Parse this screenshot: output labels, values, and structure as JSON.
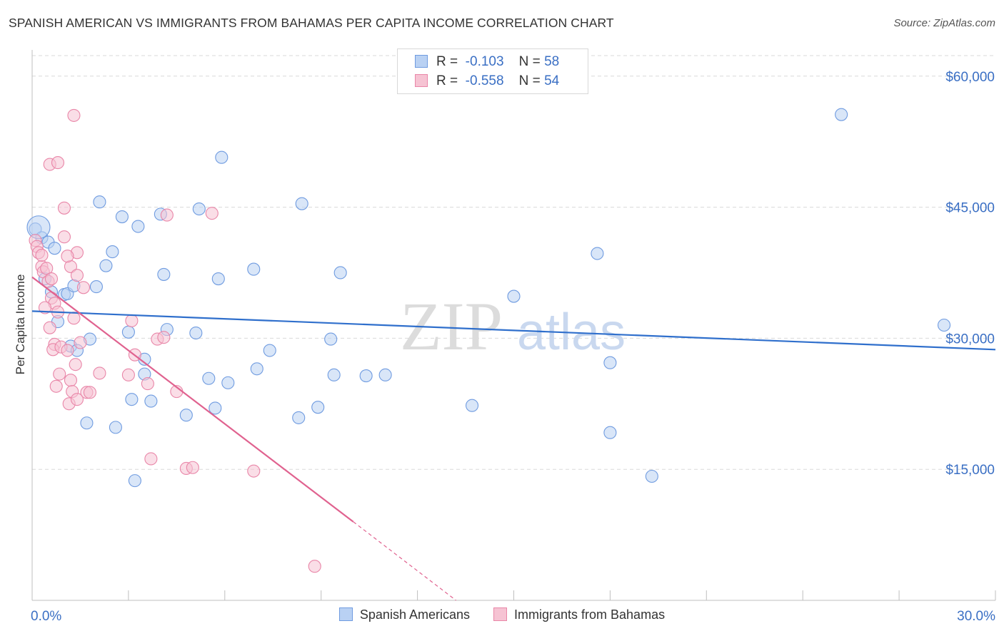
{
  "header": {
    "title": "SPANISH AMERICAN VS IMMIGRANTS FROM BAHAMAS PER CAPITA INCOME CORRELATION CHART",
    "source": "Source: ZipAtlas.com"
  },
  "watermark": {
    "zip": "ZIP",
    "atlas": "atlas"
  },
  "legend": {
    "r_label": "R =",
    "n_label": "N =",
    "rows": [
      {
        "r": "-0.103",
        "n": "58"
      },
      {
        "r": "-0.558",
        "n": "54"
      }
    ]
  },
  "colors": {
    "blue_fill": "#b9d1f3",
    "blue_stroke": "#6f9be0",
    "blue_line": "#2f6fcc",
    "pink_fill": "#f6c3d3",
    "pink_stroke": "#e986a8",
    "pink_line": "#e0628f",
    "axis_text": "#3a6fc4",
    "grid": "#d9d9d9"
  },
  "chart_data": {
    "type": "scatter",
    "title": "SPANISH AMERICAN VS IMMIGRANTS FROM BAHAMAS PER CAPITA INCOME CORRELATION CHART",
    "xlabel": "",
    "ylabel": "Per Capita Income",
    "xlim": [
      0,
      30
    ],
    "ylim": [
      0,
      63000
    ],
    "x_tick_labels": [
      "0.0%",
      "30.0%"
    ],
    "y_ticks": [
      15000,
      30000,
      45000,
      60000
    ],
    "y_tick_labels": [
      "$15,000",
      "$30,000",
      "$45,000",
      "$60,000"
    ],
    "grid": true,
    "legend_position": "top-center",
    "series": [
      {
        "name": "Spanish Americans",
        "color": "blue",
        "r": -0.103,
        "n": 58,
        "trend": {
          "x0": 0,
          "y0": 33100,
          "x1": 30,
          "y1": 28700
        },
        "points": [
          [
            0.1,
            42500
          ],
          [
            0.3,
            41500
          ],
          [
            0.5,
            41000
          ],
          [
            0.4,
            36800
          ],
          [
            0.6,
            35300
          ],
          [
            0.7,
            40300
          ],
          [
            1.0,
            35000
          ],
          [
            1.1,
            35100
          ],
          [
            1.3,
            36000
          ],
          [
            2.0,
            35900
          ],
          [
            0.8,
            31900
          ],
          [
            1.2,
            29100
          ],
          [
            1.4,
            28600
          ],
          [
            1.8,
            29900
          ],
          [
            2.1,
            45600
          ],
          [
            2.5,
            39900
          ],
          [
            2.3,
            38300
          ],
          [
            2.8,
            43900
          ],
          [
            3.3,
            42800
          ],
          [
            4.0,
            44200
          ],
          [
            4.1,
            37300
          ],
          [
            3.0,
            30700
          ],
          [
            3.1,
            23000
          ],
          [
            3.2,
            13700
          ],
          [
            3.7,
            22800
          ],
          [
            3.5,
            27600
          ],
          [
            3.5,
            25900
          ],
          [
            1.7,
            20300
          ],
          [
            2.6,
            19800
          ],
          [
            4.2,
            31000
          ],
          [
            5.1,
            30600
          ],
          [
            5.2,
            44800
          ],
          [
            5.5,
            25400
          ],
          [
            5.7,
            22000
          ],
          [
            4.8,
            21200
          ],
          [
            5.8,
            36800
          ],
          [
            5.9,
            50700
          ],
          [
            6.1,
            24900
          ],
          [
            6.9,
            37900
          ],
          [
            7.0,
            26500
          ],
          [
            7.4,
            28600
          ],
          [
            8.4,
            45400
          ],
          [
            8.3,
            20900
          ],
          [
            8.9,
            22100
          ],
          [
            9.3,
            29900
          ],
          [
            9.4,
            25800
          ],
          [
            9.6,
            37500
          ],
          [
            10.4,
            25700
          ],
          [
            11.0,
            25800
          ],
          [
            13.7,
            22300
          ],
          [
            15.0,
            34800
          ],
          [
            17.6,
            39700
          ],
          [
            18.0,
            27200
          ],
          [
            18.0,
            19200
          ],
          [
            19.3,
            14200
          ],
          [
            25.2,
            55600
          ],
          [
            28.4,
            31500
          ],
          [
            0.2,
            42700
          ]
        ]
      },
      {
        "name": "Immigrants from Bahamas",
        "color": "pink",
        "r": -0.558,
        "n": 54,
        "trend": {
          "x0": 0,
          "y0": 37000,
          "x1": 10.0,
          "y1": 9000
        },
        "trend_dashed": {
          "x0": 10.0,
          "y0": 9000,
          "x1": 13.2,
          "y1": 0
        },
        "points": [
          [
            0.1,
            41200
          ],
          [
            0.15,
            40500
          ],
          [
            0.2,
            39800
          ],
          [
            0.3,
            38200
          ],
          [
            0.35,
            37600
          ],
          [
            0.45,
            38000
          ],
          [
            0.5,
            36500
          ],
          [
            0.6,
            34600
          ],
          [
            0.7,
            34000
          ],
          [
            0.8,
            33000
          ],
          [
            0.4,
            33500
          ],
          [
            0.55,
            31200
          ],
          [
            0.7,
            29300
          ],
          [
            0.65,
            28700
          ],
          [
            0.9,
            29000
          ],
          [
            0.75,
            24500
          ],
          [
            0.85,
            25900
          ],
          [
            1.0,
            44900
          ],
          [
            0.55,
            49900
          ],
          [
            0.8,
            50100
          ],
          [
            1.0,
            41600
          ],
          [
            1.1,
            28600
          ],
          [
            1.15,
            22500
          ],
          [
            1.2,
            25200
          ],
          [
            1.25,
            23900
          ],
          [
            1.3,
            32300
          ],
          [
            1.2,
            38200
          ],
          [
            1.4,
            37200
          ],
          [
            1.4,
            39800
          ],
          [
            1.35,
            27000
          ],
          [
            1.4,
            23000
          ],
          [
            1.5,
            29500
          ],
          [
            1.6,
            35800
          ],
          [
            1.7,
            23800
          ],
          [
            1.8,
            23800
          ],
          [
            2.1,
            26000
          ],
          [
            1.3,
            55500
          ],
          [
            3.0,
            25800
          ],
          [
            3.1,
            32000
          ],
          [
            3.2,
            28100
          ],
          [
            3.6,
            24800
          ],
          [
            3.9,
            29900
          ],
          [
            3.7,
            16200
          ],
          [
            4.1,
            30100
          ],
          [
            4.2,
            44100
          ],
          [
            4.5,
            23900
          ],
          [
            4.8,
            15100
          ],
          [
            5.0,
            15200
          ],
          [
            5.6,
            44300
          ],
          [
            6.9,
            14800
          ],
          [
            8.8,
            3900
          ],
          [
            0.3,
            39500
          ],
          [
            0.6,
            36800
          ],
          [
            1.1,
            39400
          ]
        ]
      }
    ]
  }
}
